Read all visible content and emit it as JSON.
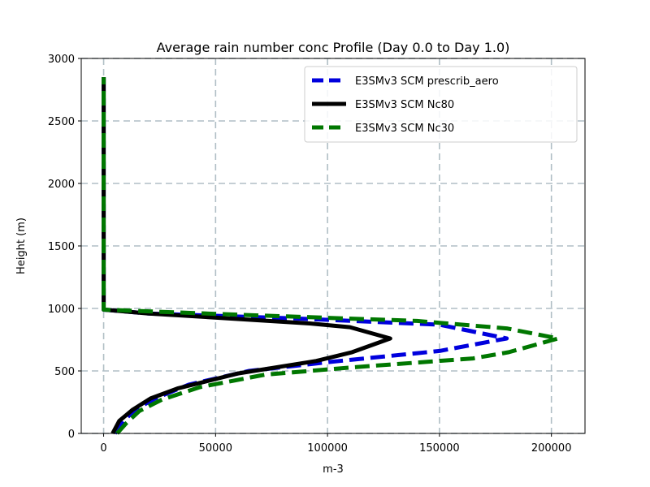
{
  "chart_data": {
    "type": "line",
    "title": "Average rain number conc Profile (Day 0.0 to Day 1.0)",
    "xlabel": "m-3",
    "ylabel": "Height (m)",
    "xlim": [
      -10000,
      215000
    ],
    "ylim": [
      0,
      3000
    ],
    "xticks": [
      0,
      50000,
      100000,
      150000,
      200000
    ],
    "xtick_labels": [
      "0",
      "50000",
      "100000",
      "150000",
      "200000"
    ],
    "yticks": [
      0,
      500,
      1000,
      1500,
      2000,
      2500,
      3000
    ],
    "ytick_labels": [
      "0",
      "500",
      "1000",
      "1500",
      "2000",
      "2500",
      "3000"
    ],
    "grid": true,
    "legend_position": "top-right",
    "series": [
      {
        "name": "E3SMv3 SCM prescrib_aero",
        "color": "#0000dd",
        "style": "dashed",
        "x": [
          5000,
          9000,
          14000,
          23000,
          38000,
          65000,
          100000,
          150000,
          180000,
          150000,
          85000,
          20000,
          0,
          0
        ],
        "height": [
          0,
          100,
          190,
          280,
          390,
          500,
          570,
          660,
          760,
          870,
          920,
          960,
          990,
          2850
        ]
      },
      {
        "name": "E3SMv3 SCM Nc80",
        "color": "#000000",
        "style": "solid",
        "x": [
          4000,
          7000,
          13000,
          21000,
          33000,
          60000,
          95000,
          111000,
          128000,
          110000,
          92000,
          20000,
          0,
          0
        ],
        "height": [
          0,
          100,
          190,
          280,
          360,
          480,
          580,
          650,
          760,
          850,
          880,
          960,
          990,
          2850
        ]
      },
      {
        "name": "E3SMv3 SCM Nc30",
        "color": "#007700",
        "style": "dashed",
        "x": [
          6000,
          10000,
          16000,
          26000,
          43000,
          72000,
          112000,
          165000,
          181000,
          203000,
          180000,
          140000,
          60000,
          0,
          0
        ],
        "height": [
          0,
          80,
          180,
          270,
          370,
          470,
          530,
          600,
          650,
          760,
          840,
          900,
          950,
          990,
          2850
        ]
      }
    ]
  }
}
